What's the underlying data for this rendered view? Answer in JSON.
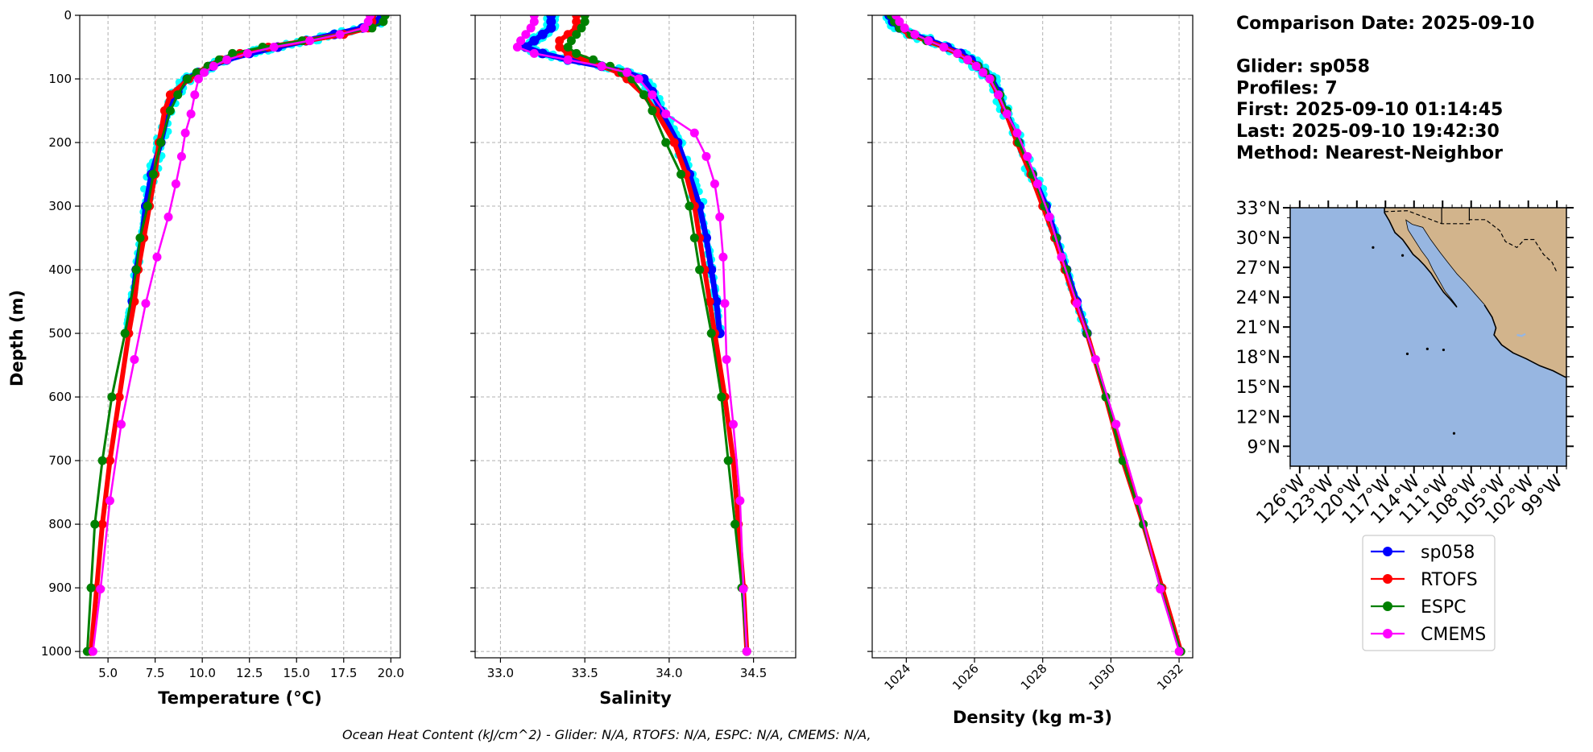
{
  "info": {
    "lines": [
      "Comparison Date: 2025-09-10",
      "",
      "Glider: sp058",
      "Profiles: 7",
      "First: 2025-09-10 01:14:45",
      "Last: 2025-09-10 19:42:30",
      "Method: Nearest-Neighbor"
    ]
  },
  "footer": "Ocean Heat Content (kJ/cm^2) - Glider: N/A,  RTOFS: N/A,  ESPC: N/A,  CMEMS: N/A,",
  "legend": [
    {
      "label": "sp058",
      "color": "#0000ff"
    },
    {
      "label": "RTOFS",
      "color": "#ff0000"
    },
    {
      "label": "ESPC",
      "color": "#008000"
    },
    {
      "label": "CMEMS",
      "color": "#ff00ff"
    }
  ],
  "map": {
    "ocean_color": "#97b6e1",
    "land_color": "#d2b48c",
    "lat_ticks": [
      "33°N",
      "30°N",
      "27°N",
      "24°N",
      "21°N",
      "18°N",
      "15°N",
      "12°N",
      "9°N"
    ],
    "lon_ticks": [
      "126°W",
      "123°W",
      "120°W",
      "117°W",
      "114°W",
      "111°W",
      "108°W",
      "105°W",
      "102°W",
      "99°W"
    ],
    "extent": {
      "lon_min": -127,
      "lon_max": -98,
      "lat_min": 7,
      "lat_max": 33
    }
  },
  "chart_data": [
    {
      "type": "line",
      "xlabel": "Temperature ($^{o}C$)",
      "xlabel_display": "Temperature (°C)",
      "ylabel": "Depth (m)",
      "xlim": [
        3.5,
        20.5
      ],
      "ylim": [
        1010,
        0
      ],
      "grid": true,
      "xticks": [
        "5.0",
        "7.5",
        "10.0",
        "12.5",
        "15.0",
        "17.5",
        "20.0"
      ],
      "xtick_values": [
        5,
        7.5,
        10,
        12.5,
        15,
        17.5,
        20
      ],
      "yticks": [
        "0",
        "100",
        "200",
        "300",
        "400",
        "500",
        "600",
        "700",
        "800",
        "900",
        "1000"
      ],
      "ytick_values": [
        0,
        100,
        200,
        300,
        400,
        500,
        600,
        700,
        800,
        900,
        1000
      ],
      "series": [
        {
          "name": "sp058",
          "depth": [
            0,
            10,
            20,
            30,
            40,
            50,
            60,
            70,
            80,
            90,
            100,
            120,
            150,
            200,
            250,
            300,
            350,
            400,
            450,
            500
          ],
          "values": [
            19.5,
            19.3,
            18.5,
            17.0,
            15.5,
            14.0,
            12.5,
            11.3,
            10.5,
            9.8,
            9.2,
            8.7,
            8.2,
            7.8,
            7.3,
            7.0,
            6.8,
            6.5,
            6.3,
            6.0
          ]
        },
        {
          "name": "RTOFS",
          "depth": [
            0,
            10,
            20,
            30,
            40,
            50,
            60,
            70,
            80,
            90,
            100,
            125,
            150,
            200,
            250,
            300,
            350,
            400,
            450,
            500,
            600,
            700,
            800,
            900,
            1000
          ],
          "values": [
            19.0,
            19.0,
            18.8,
            17.5,
            15.5,
            13.5,
            12.0,
            11.0,
            10.3,
            9.8,
            9.3,
            8.3,
            8.0,
            7.7,
            7.5,
            7.2,
            6.9,
            6.6,
            6.4,
            6.1,
            5.6,
            5.1,
            4.7,
            4.4,
            4.1
          ]
        },
        {
          "name": "ESPC",
          "depth": [
            0,
            10,
            20,
            30,
            40,
            50,
            60,
            70,
            80,
            90,
            100,
            125,
            150,
            200,
            250,
            300,
            350,
            400,
            500,
            600,
            700,
            800,
            900,
            1000
          ],
          "values": [
            19.7,
            19.6,
            19.0,
            17.3,
            15.3,
            13.2,
            11.6,
            10.9,
            10.3,
            9.7,
            9.2,
            8.7,
            8.3,
            7.8,
            7.4,
            7.1,
            6.7,
            6.5,
            5.9,
            5.2,
            4.7,
            4.3,
            4.1,
            3.9
          ]
        },
        {
          "name": "CMEMS",
          "depth": [
            0,
            10,
            20,
            30,
            40,
            50,
            60,
            70,
            80,
            90,
            100,
            125,
            155,
            185,
            222,
            265,
            317,
            380,
            453,
            541,
            643,
            763,
            902,
            1000
          ],
          "values": [
            18.9,
            18.8,
            18.6,
            17.3,
            15.7,
            13.8,
            12.4,
            11.3,
            10.6,
            10.1,
            9.8,
            9.6,
            9.4,
            9.1,
            8.9,
            8.6,
            8.2,
            7.6,
            7.0,
            6.4,
            5.7,
            5.1,
            4.6,
            4.2
          ]
        }
      ]
    },
    {
      "type": "line",
      "xlabel": "Salinity",
      "xlim": [
        32.85,
        34.75
      ],
      "ylim": [
        1010,
        0
      ],
      "grid": true,
      "xticks": [
        "33.0",
        "33.5",
        "34.0",
        "34.5"
      ],
      "xtick_values": [
        33.0,
        33.5,
        34.0,
        34.5
      ],
      "series": [
        {
          "name": "sp058",
          "depth": [
            0,
            10,
            20,
            30,
            40,
            50,
            60,
            70,
            80,
            90,
            100,
            120,
            150,
            200,
            250,
            300,
            350,
            400,
            450,
            500
          ],
          "values": [
            33.3,
            33.3,
            33.3,
            33.25,
            33.2,
            33.15,
            33.25,
            33.4,
            33.6,
            33.75,
            33.85,
            33.9,
            33.95,
            34.05,
            34.12,
            34.18,
            34.22,
            34.25,
            34.28,
            34.3
          ]
        },
        {
          "name": "RTOFS",
          "depth": [
            0,
            10,
            20,
            30,
            40,
            50,
            60,
            70,
            80,
            90,
            100,
            125,
            150,
            200,
            250,
            300,
            350,
            400,
            450,
            500,
            600,
            700,
            800,
            900,
            1000
          ],
          "values": [
            33.45,
            33.45,
            33.45,
            33.4,
            33.35,
            33.35,
            33.4,
            33.5,
            33.6,
            33.7,
            33.75,
            33.85,
            33.92,
            34.03,
            34.1,
            34.15,
            34.18,
            34.21,
            34.24,
            34.27,
            34.33,
            34.38,
            34.41,
            34.44,
            34.46
          ]
        },
        {
          "name": "ESPC",
          "depth": [
            0,
            10,
            20,
            30,
            40,
            50,
            60,
            70,
            80,
            90,
            100,
            125,
            150,
            200,
            250,
            300,
            350,
            400,
            500,
            600,
            700,
            800,
            900,
            1000
          ],
          "values": [
            33.5,
            33.5,
            33.48,
            33.45,
            33.42,
            33.4,
            33.45,
            33.55,
            33.65,
            33.72,
            33.78,
            33.85,
            33.9,
            33.98,
            34.07,
            34.12,
            34.15,
            34.18,
            34.25,
            34.31,
            34.35,
            34.39,
            34.43,
            34.46
          ]
        },
        {
          "name": "CMEMS",
          "depth": [
            0,
            10,
            20,
            30,
            40,
            50,
            60,
            70,
            80,
            90,
            100,
            125,
            155,
            185,
            222,
            265,
            317,
            380,
            453,
            541,
            643,
            763,
            902,
            1000
          ],
          "values": [
            33.2,
            33.2,
            33.18,
            33.15,
            33.12,
            33.1,
            33.2,
            33.4,
            33.6,
            33.75,
            33.82,
            33.9,
            33.98,
            34.15,
            34.22,
            34.27,
            34.3,
            34.32,
            34.33,
            34.34,
            34.38,
            34.42,
            34.44,
            34.46
          ]
        }
      ]
    },
    {
      "type": "line",
      "xlabel": "Density (kg m-3)",
      "xlim": [
        1023.0,
        1032.4
      ],
      "ylim": [
        1010,
        0
      ],
      "grid": true,
      "xticks": [
        "1024",
        "1026",
        "1028",
        "1030",
        "1032"
      ],
      "xtick_values": [
        1024,
        1026,
        1028,
        1030,
        1032
      ],
      "series": [
        {
          "name": "sp058",
          "depth": [
            0,
            10,
            20,
            30,
            40,
            50,
            60,
            70,
            80,
            90,
            100,
            120,
            150,
            200,
            250,
            300,
            350,
            400,
            450,
            500
          ],
          "values": [
            1023.5,
            1023.6,
            1023.8,
            1024.2,
            1024.7,
            1025.2,
            1025.6,
            1025.9,
            1026.1,
            1026.3,
            1026.5,
            1026.7,
            1026.9,
            1027.3,
            1027.7,
            1028.1,
            1028.4,
            1028.7,
            1029.0,
            1029.3
          ]
        },
        {
          "name": "RTOFS",
          "depth": [
            0,
            10,
            20,
            30,
            40,
            50,
            60,
            70,
            80,
            90,
            100,
            125,
            150,
            200,
            250,
            300,
            350,
            400,
            450,
            500,
            600,
            700,
            800,
            900,
            1000
          ],
          "values": [
            1023.6,
            1023.7,
            1023.8,
            1024.1,
            1024.6,
            1025.1,
            1025.5,
            1025.8,
            1026.1,
            1026.3,
            1026.45,
            1026.7,
            1026.9,
            1027.25,
            1027.65,
            1028.0,
            1028.35,
            1028.65,
            1028.95,
            1029.3,
            1029.85,
            1030.35,
            1030.95,
            1031.5,
            1032.05
          ]
        },
        {
          "name": "ESPC",
          "depth": [
            0,
            10,
            20,
            30,
            40,
            50,
            60,
            70,
            80,
            90,
            100,
            125,
            150,
            200,
            250,
            300,
            350,
            400,
            500,
            600,
            700,
            800,
            900,
            1000
          ],
          "values": [
            1023.55,
            1023.65,
            1023.8,
            1024.15,
            1024.6,
            1025.1,
            1025.5,
            1025.8,
            1026.1,
            1026.3,
            1026.5,
            1026.75,
            1026.95,
            1027.3,
            1027.7,
            1028.05,
            1028.4,
            1028.7,
            1029.3,
            1029.85,
            1030.35,
            1030.95,
            1031.45,
            1032.05
          ]
        },
        {
          "name": "CMEMS",
          "depth": [
            0,
            10,
            20,
            30,
            40,
            50,
            60,
            70,
            80,
            90,
            100,
            125,
            155,
            185,
            222,
            265,
            317,
            380,
            453,
            541,
            643,
            763,
            902,
            1000
          ],
          "values": [
            1023.7,
            1023.8,
            1023.95,
            1024.25,
            1024.65,
            1025.1,
            1025.5,
            1025.8,
            1026.05,
            1026.25,
            1026.45,
            1026.7,
            1026.95,
            1027.25,
            1027.55,
            1027.85,
            1028.2,
            1028.55,
            1029.0,
            1029.55,
            1030.15,
            1030.8,
            1031.45,
            1032.0
          ]
        }
      ]
    }
  ]
}
